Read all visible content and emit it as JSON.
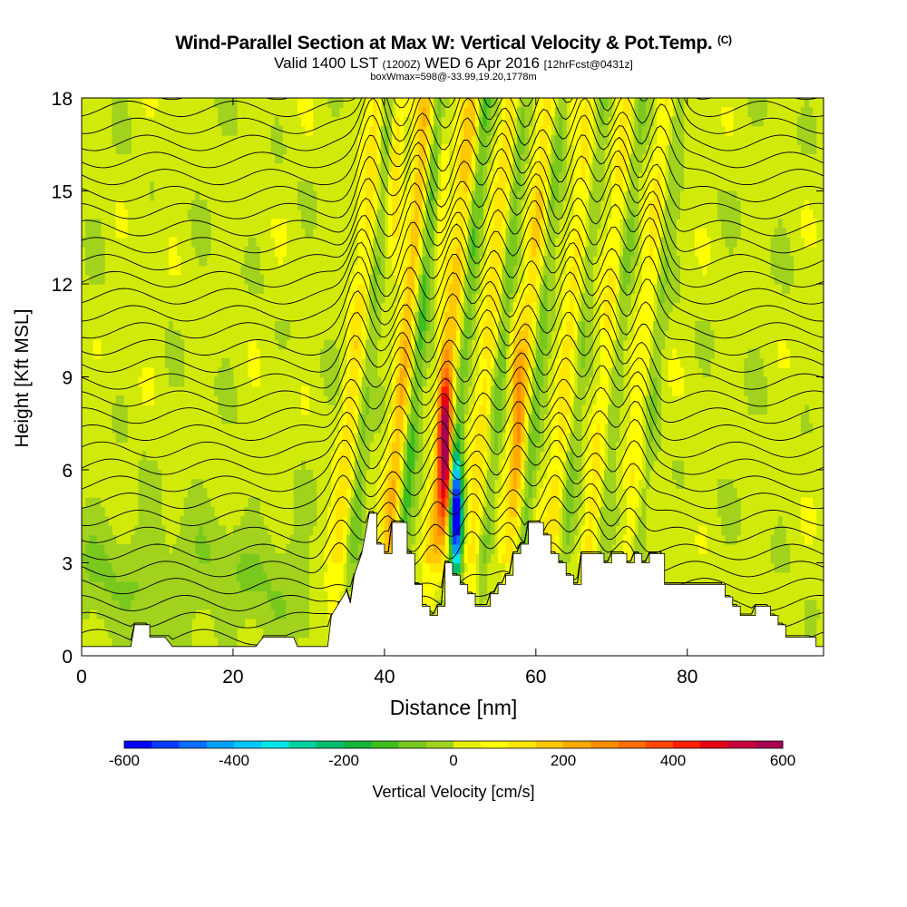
{
  "title": {
    "main": "Wind-Parallel Section at Max W: Vertical Velocity & Pot.Temp.",
    "copyright": "(C)",
    "valid_prefix": "Valid 1400 LST",
    "utc": "(1200Z)",
    "date": "WED 6 Apr 2016",
    "forecast": "[12hrFcst@0431z]",
    "box_info": "boxWmax=598@-33.99,19.20,1778m"
  },
  "chart_data": {
    "type": "cross-section-contour",
    "xlabel": "Distance [nm]",
    "ylabel": "Height [Kft MSL]",
    "xlim": [
      0,
      98
    ],
    "ylim": [
      0,
      18
    ],
    "x_ticks": [
      "0",
      "20",
      "40",
      "60",
      "80"
    ],
    "x_tick_values": [
      0,
      20,
      40,
      60,
      80
    ],
    "y_ticks": [
      "0",
      "3",
      "6",
      "9",
      "12",
      "15",
      "18"
    ],
    "y_tick_values": [
      0,
      3,
      6,
      9,
      12,
      15,
      18
    ],
    "colorbar": {
      "label": "Vertical Velocity [cm/s]",
      "min": -600,
      "max": 600,
      "step": 50,
      "tick_labels": [
        "-600",
        "-400",
        "-200",
        "0",
        "200",
        "400",
        "600"
      ],
      "tick_values": [
        -600,
        -400,
        -200,
        0,
        200,
        400,
        600
      ],
      "colors": [
        "#0000ff",
        "#0a3cff",
        "#0a6eff",
        "#00a0ff",
        "#00c8ff",
        "#00e6e6",
        "#00d2a0",
        "#00be6e",
        "#14b43c",
        "#3cbe1e",
        "#78c81e",
        "#a0d21e",
        "#e6f000",
        "#ffff00",
        "#ffe600",
        "#ffc800",
        "#ffaa00",
        "#ff8c00",
        "#ff6e00",
        "#ff4600",
        "#ff1e00",
        "#e60014",
        "#c8003c",
        "#aa0050"
      ]
    },
    "terrain_kft": [
      [
        0,
        0.3
      ],
      [
        6.5,
        0.3
      ],
      [
        7,
        1
      ],
      [
        9,
        1
      ],
      [
        9,
        0.6
      ],
      [
        11,
        0.6
      ],
      [
        12,
        0.3
      ],
      [
        23,
        0.3
      ],
      [
        24,
        0.6
      ],
      [
        28,
        0.6
      ],
      [
        28.5,
        0.3
      ],
      [
        32.5,
        0.3
      ],
      [
        33,
        1.3
      ],
      [
        34,
        1.7
      ],
      [
        35,
        2.1
      ],
      [
        35.5,
        1.7
      ],
      [
        36,
        2.6
      ],
      [
        37,
        3.3
      ],
      [
        38,
        4.6
      ],
      [
        39,
        4.6
      ],
      [
        39,
        3.6
      ],
      [
        40,
        3.6
      ],
      [
        40,
        3.3
      ],
      [
        41,
        3.3
      ],
      [
        41,
        4.3
      ],
      [
        43,
        4.3
      ],
      [
        43,
        3.3
      ],
      [
        44,
        3.3
      ],
      [
        44,
        2.3
      ],
      [
        45,
        2.3
      ],
      [
        45,
        1.6
      ],
      [
        46,
        1.6
      ],
      [
        46,
        1.3
      ],
      [
        47,
        1.3
      ],
      [
        47,
        1.6
      ],
      [
        48,
        1.6
      ],
      [
        48,
        3
      ],
      [
        49,
        3
      ],
      [
        49,
        2.6
      ],
      [
        50,
        2.6
      ],
      [
        50,
        2.3
      ],
      [
        51,
        2.3
      ],
      [
        51,
        2
      ],
      [
        52,
        2
      ],
      [
        52,
        1.6
      ],
      [
        54,
        1.6
      ],
      [
        54,
        2
      ],
      [
        55,
        2
      ],
      [
        55,
        2.3
      ],
      [
        56,
        2.3
      ],
      [
        56,
        2.6
      ],
      [
        57,
        2.6
      ],
      [
        57,
        3.3
      ],
      [
        58,
        3.3
      ],
      [
        58,
        3.6
      ],
      [
        59,
        3.6
      ],
      [
        59,
        4.3
      ],
      [
        61,
        4.3
      ],
      [
        61,
        3.9
      ],
      [
        62,
        3.9
      ],
      [
        62,
        3.3
      ],
      [
        63,
        3.3
      ],
      [
        63,
        3
      ],
      [
        64,
        3
      ],
      [
        64,
        2.6
      ],
      [
        65,
        2.6
      ],
      [
        65,
        2.3
      ],
      [
        66,
        2.3
      ],
      [
        66,
        3.3
      ],
      [
        69,
        3.3
      ],
      [
        69,
        3
      ],
      [
        70,
        3
      ],
      [
        70,
        3.3
      ],
      [
        72,
        3.3
      ],
      [
        72,
        3
      ],
      [
        73,
        3
      ],
      [
        73,
        3.3
      ],
      [
        74,
        3.3
      ],
      [
        74,
        3
      ],
      [
        75,
        3
      ],
      [
        75,
        3.3
      ],
      [
        77,
        3.3
      ],
      [
        77,
        2.3
      ],
      [
        85,
        2.3
      ],
      [
        85,
        1.9
      ],
      [
        86,
        1.9
      ],
      [
        86,
        1.6
      ],
      [
        87,
        1.6
      ],
      [
        87,
        1.3
      ],
      [
        89,
        1.3
      ],
      [
        89,
        1.6
      ],
      [
        91,
        1.6
      ],
      [
        91,
        1.3
      ],
      [
        92,
        1.3
      ],
      [
        92,
        1
      ],
      [
        93,
        1
      ],
      [
        93,
        0.6
      ],
      [
        97,
        0.6
      ],
      [
        97,
        0.3
      ],
      [
        98,
        0.3
      ]
    ],
    "features": [
      {
        "type": "updraft",
        "x": 48,
        "z": 6.5,
        "w": 598
      },
      {
        "type": "downdraft",
        "x": 49.5,
        "z": 4.5,
        "w": -550
      },
      {
        "type": "updraft",
        "x": 57.5,
        "z": 8,
        "w": 250
      },
      {
        "type": "updraft",
        "x": 41.5,
        "z": 16,
        "w": 250
      },
      {
        "type": "updraft",
        "x": 47.5,
        "z": 16,
        "w": 200
      }
    ]
  }
}
